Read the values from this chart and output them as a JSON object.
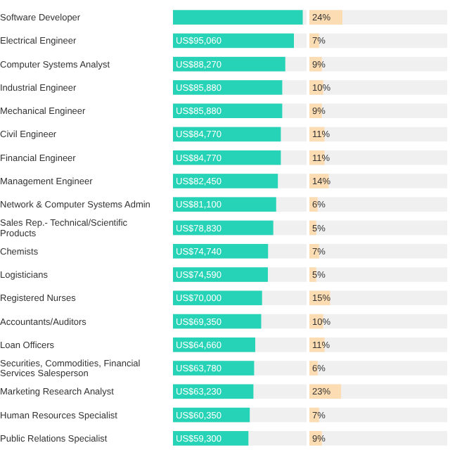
{
  "chart_data": [
    {
      "type": "bar",
      "orientation": "horizontal",
      "tick_labels": "y",
      "color": "#26d3b6",
      "xlim": [
        0,
        105000
      ],
      "categories": [
        "Software Developer",
        "Electrical Engineer",
        "Computer Systems Analyst",
        "Industrial Engineer",
        "Mechanical Engineer",
        "Civil Engineer",
        "Financial Engineer",
        "Management Engineer",
        "Network & Computer Systems Admin",
        "Sales Rep.- Technical/Scientific Products",
        "Chemists",
        "Logisticians",
        "Registered Nurses",
        "Accountants/Auditors",
        "Loan Officers",
        "Securities, Commodities, Financial Services Salesperson",
        "Marketing Research Analyst",
        "Human Resources Specialist",
        "Public Relations Specialist"
      ],
      "values": [
        102000,
        95060,
        88270,
        85880,
        85880,
        84770,
        84770,
        82450,
        81100,
        78830,
        74740,
        74590,
        70000,
        69350,
        64660,
        63780,
        63230,
        60350,
        59300
      ],
      "value_labels": [
        null,
        "US$95,060",
        "US$88,270",
        "US$85,880",
        "US$85,880",
        "US$84,770",
        "US$84,770",
        "US$82,450",
        "US$81,100",
        "US$78,830",
        "US$74,740",
        "US$74,590",
        "US$70,000",
        "US$69,350",
        "US$64,660",
        "US$63,780",
        "US$63,230",
        "US$60,350",
        "US$59,300"
      ]
    },
    {
      "type": "bar",
      "orientation": "horizontal",
      "tick_labels": false,
      "color": "#fcdcb2",
      "xlim": [
        0,
        100
      ],
      "categories": [
        null,
        null,
        null,
        null,
        null,
        null,
        null,
        null,
        null,
        null,
        null,
        null,
        null,
        null,
        null,
        null,
        null,
        null,
        null
      ],
      "values": [
        24,
        7,
        9,
        10,
        9,
        11,
        11,
        14,
        6,
        5,
        7,
        5,
        15,
        10,
        11,
        6,
        23,
        7,
        9
      ],
      "value_labels": [
        "24%",
        "7%",
        "9%",
        "10%",
        "9%",
        "11%",
        "11%",
        "14%",
        "6%",
        "5%",
        "7%",
        "5%",
        "15%",
        "10%",
        "11%",
        "6%",
        "23%",
        "7%",
        "9%"
      ]
    }
  ]
}
